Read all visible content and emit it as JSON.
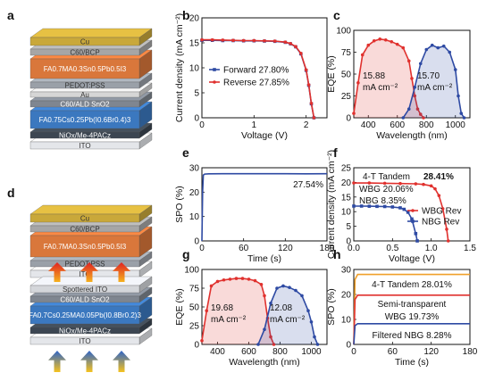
{
  "panel_labels": {
    "a": "a",
    "b": "b",
    "c": "c",
    "d": "d",
    "e": "e",
    "f": "f",
    "g": "g",
    "h": "h"
  },
  "stack_a": {
    "layers": [
      {
        "label": "Cu",
        "color": "#c9a83a",
        "h": 9,
        "text": "dark"
      },
      {
        "label": "C60/BCP",
        "color": "#a6a6a6",
        "h": 7,
        "text": "dark"
      },
      {
        "label": "FA0.7MA0.3Sn0.5Pb0.5I3",
        "color": "#d9773b",
        "h": 22,
        "text": "light"
      },
      {
        "label": "PEDOT:PSS",
        "color": "#9aa0a8",
        "h": 7,
        "text": "dark"
      },
      {
        "label": "Au",
        "color": "#d6d6d6",
        "h": 6,
        "text": "dark"
      },
      {
        "label": "C60/ALD SnO2",
        "color": "#7f8690",
        "h": 7,
        "text": "light"
      },
      {
        "label": "FA0.75Cs0.25Pb(I0.6Br0.4)3",
        "color": "#3b78bf",
        "h": 20,
        "text": "light"
      },
      {
        "label": "NiOx/Me-4PACz",
        "color": "#3c4652",
        "h": 7,
        "text": "light"
      },
      {
        "label": "ITO",
        "color": "#e4e6ea",
        "h": 8,
        "text": "dark"
      }
    ]
  },
  "stack_d": {
    "top_layers": [
      {
        "label": "Cu",
        "color": "#c9a83a",
        "h": 9,
        "text": "dark"
      },
      {
        "label": "C60/BCP",
        "color": "#a6a6a6",
        "h": 7,
        "text": "dark"
      },
      {
        "label": "FA0.7MA0.3Sn0.5Pb0.5I3",
        "color": "#d9773b",
        "h": 24,
        "text": "light"
      },
      {
        "label": "PEDOT:PSS",
        "color": "#9aa0a8",
        "h": 7,
        "text": "dark"
      },
      {
        "label": "ITO",
        "color": "#e4e6ea",
        "h": 8,
        "text": "dark"
      }
    ],
    "bottom_layers": [
      {
        "label": "Spottered ITO",
        "color": "#d4d6da",
        "h": 8,
        "text": "dark"
      },
      {
        "label": "C60/ALD SnO2",
        "color": "#7f8690",
        "h": 7,
        "text": "light"
      },
      {
        "label": "FA0.7Cs0.25MA0.05Pb(I0.8Br0.2)3",
        "color": "#3b78bf",
        "h": 20,
        "text": "light"
      },
      {
        "label": "NiOx/Me-4PACz",
        "color": "#3c4652",
        "h": 7,
        "text": "light"
      },
      {
        "label": "ITO",
        "color": "#e4e6ea",
        "h": 8,
        "text": "dark"
      }
    ]
  },
  "chart_data": [
    {
      "id": "b",
      "type": "line",
      "xlabel": "Voltage (V)",
      "ylabel": "Current density (mA cm⁻²)",
      "xlim": [
        0,
        2.4
      ],
      "ylim": [
        0,
        20
      ],
      "xticks": [
        0,
        1,
        2
      ],
      "yticks": [
        0,
        5,
        10,
        15,
        20
      ],
      "series": [
        {
          "name": "Forward 27.80%",
          "color": "#2e4aa3",
          "marker": "square",
          "x": [
            0,
            0.2,
            0.4,
            0.6,
            0.8,
            1.0,
            1.2,
            1.4,
            1.6,
            1.7,
            1.8,
            1.9,
            2.0,
            2.05,
            2.1,
            2.15
          ],
          "y": [
            15.5,
            15.5,
            15.45,
            15.45,
            15.4,
            15.4,
            15.35,
            15.3,
            15.1,
            14.8,
            14.2,
            12.8,
            9.5,
            6.5,
            2.8,
            0
          ]
        },
        {
          "name": "Reverse 27.85%",
          "color": "#e0312e",
          "marker": "circle",
          "x": [
            0,
            0.2,
            0.4,
            0.6,
            0.8,
            1.0,
            1.2,
            1.4,
            1.6,
            1.7,
            1.8,
            1.9,
            2.0,
            2.05,
            2.1,
            2.15
          ],
          "y": [
            15.6,
            15.6,
            15.55,
            15.5,
            15.45,
            15.45,
            15.4,
            15.35,
            15.15,
            14.85,
            14.25,
            12.9,
            9.6,
            6.6,
            2.9,
            0
          ]
        }
      ]
    },
    {
      "id": "c",
      "type": "area",
      "xlabel": "Wavelength (nm)",
      "ylabel": "EQE (%)",
      "xlim": [
        300,
        1100
      ],
      "ylim": [
        0,
        100
      ],
      "xticks": [
        400,
        600,
        800,
        1000
      ],
      "yticks": [
        0,
        25,
        50,
        75,
        100
      ],
      "series": [
        {
          "name": "15.88 mA cm⁻²",
          "color": "#e0312e",
          "x": [
            300,
            330,
            360,
            400,
            440,
            480,
            520,
            560,
            600,
            640,
            680,
            700,
            720,
            740,
            760,
            780
          ],
          "y": [
            5,
            40,
            72,
            83,
            88,
            90,
            89,
            87,
            84,
            80,
            65,
            45,
            25,
            10,
            4,
            0
          ]
        },
        {
          "name": "15.70 mA cm⁻²",
          "color": "#2e4aa3",
          "x": [
            640,
            680,
            720,
            760,
            800,
            840,
            880,
            920,
            960,
            1000,
            1020,
            1040,
            1060
          ],
          "y": [
            0,
            10,
            35,
            62,
            78,
            83,
            80,
            82,
            75,
            55,
            25,
            5,
            0
          ]
        }
      ],
      "annotations": [
        "15.88",
        "mA cm⁻²",
        "15.70",
        "mA cm⁻²"
      ]
    },
    {
      "id": "e",
      "type": "line",
      "xlabel": "Time (s)",
      "ylabel": "SPO (%)",
      "xlim": [
        0,
        180
      ],
      "ylim": [
        0,
        30
      ],
      "xticks": [
        0,
        60,
        120,
        180
      ],
      "yticks": [
        0,
        10,
        20,
        30
      ],
      "series": [
        {
          "name": "27.54%",
          "color": "#2e4aa3",
          "x": [
            0,
            1,
            2,
            4,
            10,
            30,
            60,
            90,
            120,
            150,
            180
          ],
          "y": [
            0,
            20,
            27,
            27.4,
            27.5,
            27.54,
            27.55,
            27.54,
            27.54,
            27.53,
            27.54
          ]
        }
      ]
    },
    {
      "id": "f",
      "type": "line",
      "xlabel": "Voltage (V)",
      "ylabel": "Current density (mA cm⁻²)",
      "xlim": [
        0,
        1.5
      ],
      "ylim": [
        0,
        25
      ],
      "xticks": [
        0,
        0.5,
        1.0,
        1.5
      ],
      "yticks": [
        0,
        5,
        10,
        15,
        20,
        25
      ],
      "title_lines": [
        "4-T Tandem",
        "28.41%",
        "WBG 20.06%",
        "NBG 8.35%"
      ],
      "series": [
        {
          "name": "WBG Rev",
          "color": "#e0312e",
          "marker": "circle",
          "x": [
            0,
            0.2,
            0.4,
            0.6,
            0.8,
            0.9,
            1.0,
            1.05,
            1.1,
            1.15,
            1.2,
            1.22
          ],
          "y": [
            19.8,
            19.8,
            19.7,
            19.6,
            19.5,
            19.3,
            18.8,
            17.8,
            15.5,
            11,
            4,
            0
          ]
        },
        {
          "name": "NBG Rev",
          "color": "#2e4aa3",
          "marker": "square",
          "x": [
            0,
            0.1,
            0.2,
            0.3,
            0.4,
            0.5,
            0.6,
            0.65,
            0.7,
            0.75,
            0.8,
            0.82
          ],
          "y": [
            11.9,
            11.9,
            11.85,
            11.8,
            11.75,
            11.6,
            11.3,
            10.8,
            9.8,
            7.5,
            2.5,
            0
          ]
        }
      ]
    },
    {
      "id": "g",
      "type": "area",
      "xlabel": "Wavelength (nm)",
      "ylabel": "EQE (%)",
      "xlim": [
        300,
        1100
      ],
      "ylim": [
        0,
        100
      ],
      "xticks": [
        400,
        600,
        800,
        1000
      ],
      "yticks": [
        0,
        25,
        50,
        75,
        100
      ],
      "series": [
        {
          "name": "19.68 mA cm⁻²",
          "color": "#e0312e",
          "x": [
            300,
            330,
            360,
            400,
            440,
            480,
            520,
            560,
            600,
            640,
            680,
            700,
            720,
            740,
            760
          ],
          "y": [
            5,
            45,
            78,
            84,
            86,
            87,
            88,
            88,
            87,
            85,
            80,
            65,
            35,
            10,
            0
          ]
        },
        {
          "name": "12.08 mA cm⁻²",
          "color": "#2e4aa3",
          "x": [
            660,
            700,
            740,
            780,
            820,
            860,
            900,
            940,
            980,
            1000,
            1020,
            1040
          ],
          "y": [
            0,
            20,
            55,
            75,
            78,
            76,
            72,
            65,
            45,
            30,
            10,
            0
          ]
        }
      ],
      "annotations": [
        "19.68",
        "mA cm⁻²",
        "12.08",
        "mA cm⁻²"
      ]
    },
    {
      "id": "h",
      "type": "line",
      "xlabel": "Time (s)",
      "ylabel": "SPO (%)",
      "xlim": [
        0,
        180
      ],
      "ylim": [
        0,
        30
      ],
      "xticks": [
        0,
        60,
        120,
        180
      ],
      "yticks": [
        0,
        10,
        20,
        30
      ],
      "series": [
        {
          "name": "4-T Tandem 28.01%",
          "color": "#f0a02a",
          "x": [
            0,
            2,
            6,
            180
          ],
          "y": [
            0,
            26,
            28.01,
            28.01
          ]
        },
        {
          "name": "Semi-transparent WBG 19.73%",
          "color": "#e0312e",
          "x": [
            0,
            2,
            6,
            180
          ],
          "y": [
            0,
            18,
            19.73,
            19.73
          ]
        },
        {
          "name": "Filtered NBG 8.28%",
          "color": "#2e4aa3",
          "x": [
            0,
            2,
            6,
            180
          ],
          "y": [
            0,
            7.5,
            8.28,
            8.28
          ]
        }
      ]
    }
  ]
}
